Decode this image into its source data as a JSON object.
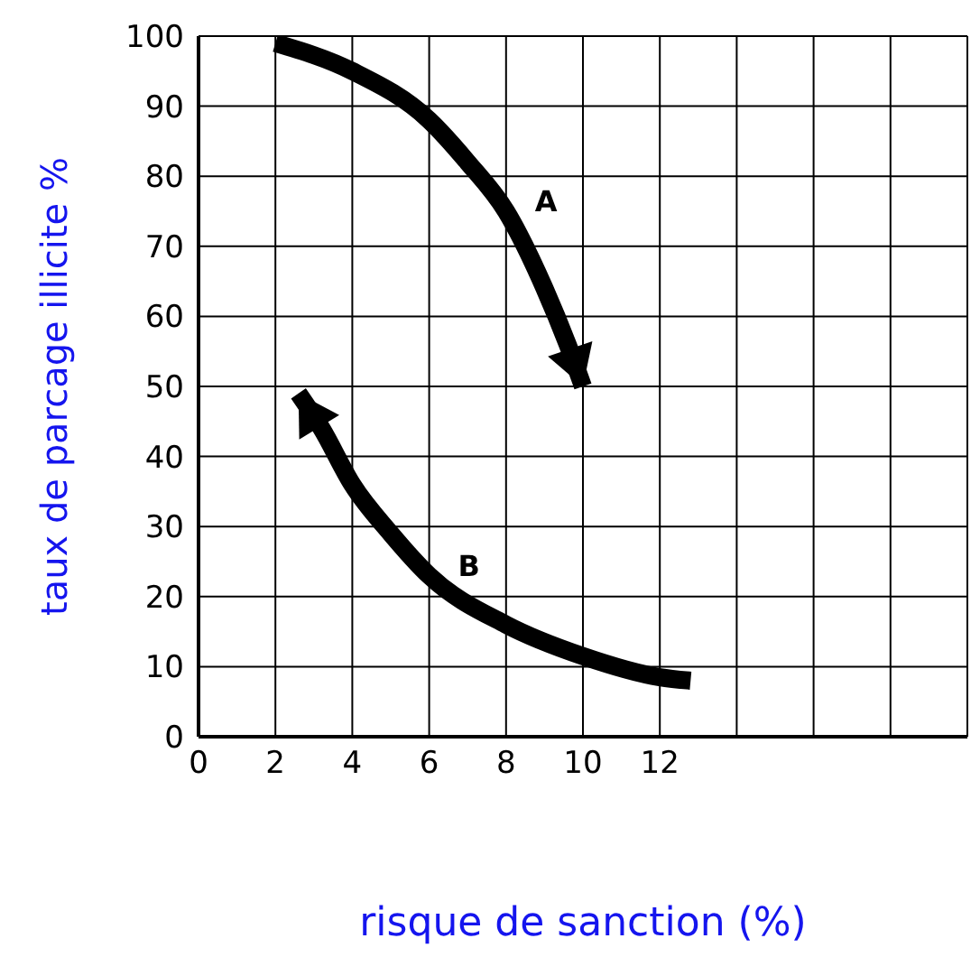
{
  "chart_data": {
    "type": "line",
    "xlabel": "risque de sanction (%)",
    "ylabel": "taux de parcage illicite %",
    "xlim": [
      0,
      20
    ],
    "xticks": [
      0,
      2,
      4,
      6,
      8,
      10,
      12,
      {
        "value": 14,
        "label": null
      },
      {
        "value": 16,
        "label": null
      },
      {
        "value": 18,
        "label": null
      },
      {
        "value": 20,
        "label": null
      }
    ],
    "ylim": [
      0,
      100
    ],
    "yticks": [
      0,
      10,
      20,
      30,
      40,
      50,
      60,
      70,
      80,
      90,
      100
    ],
    "grid": true,
    "legend": false,
    "marker": "none",
    "line_style": "solid",
    "series": [
      {
        "name": "A",
        "color": "#000000",
        "x": [
          2,
          4,
          6,
          7,
          8,
          9,
          9.6,
          10
        ],
        "values": [
          99,
          95,
          88,
          82,
          75,
          64,
          56,
          50
        ]
      },
      {
        "name": "B",
        "color": "#000000",
        "x": [
          12.8,
          12,
          10,
          8,
          6,
          5,
          4,
          3.2,
          2.6
        ],
        "values": [
          8,
          8.5,
          11.5,
          16,
          23,
          29,
          36,
          44,
          49
        ]
      }
    ]
  }
}
